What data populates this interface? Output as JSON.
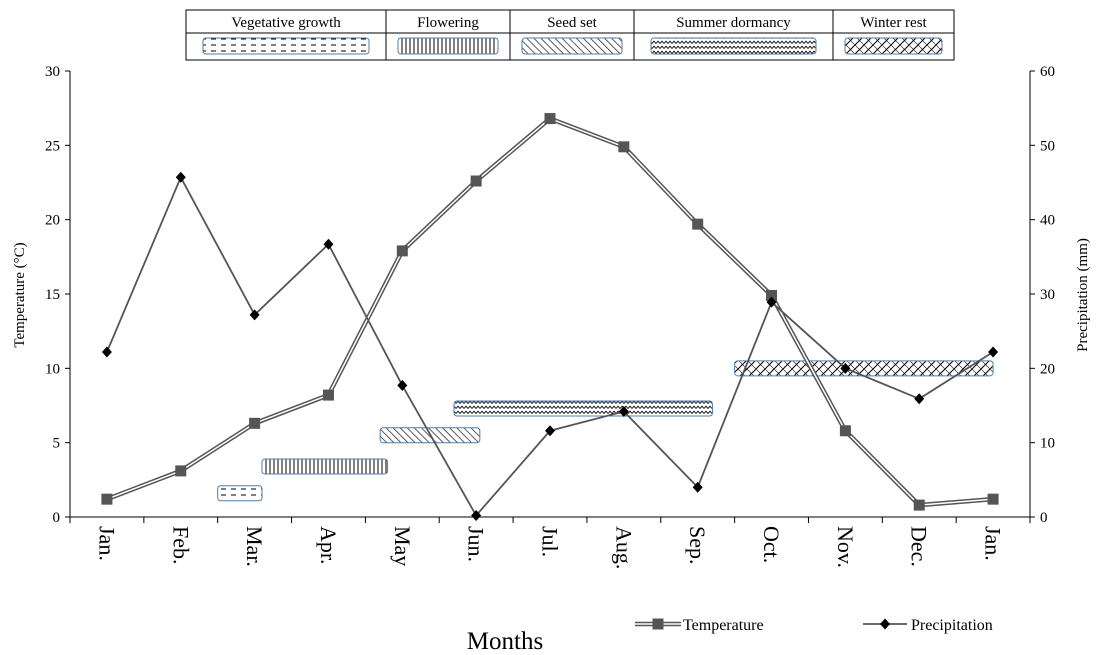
{
  "chart_data": {
    "type": "line",
    "xlabel": "Months",
    "categories": [
      "Jan.",
      "Feb.",
      "Mar.",
      "Apr.",
      "May",
      "Jun.",
      "Jul.",
      "Aug.",
      "Sep.",
      "Oct.",
      "Nov.",
      "Dec.",
      "Jan."
    ],
    "y_left": {
      "label": "Temperature (°C)",
      "ylim": [
        0,
        30
      ],
      "ticks": [
        "0",
        "5",
        "10",
        "15",
        "20",
        "25",
        "30"
      ]
    },
    "y_right": {
      "label": "Precipitation (mm)",
      "ylim": [
        0,
        60
      ],
      "ticks": [
        "0",
        "10",
        "20",
        "30",
        "40",
        "50",
        "60"
      ]
    },
    "series": [
      {
        "name": "Temperature",
        "axis": "left",
        "marker": "square",
        "color": "#555555",
        "values": [
          1.2,
          3.1,
          6.3,
          8.2,
          17.9,
          22.6,
          26.8,
          24.9,
          19.7,
          14.9,
          5.8,
          0.8,
          1.2
        ]
      },
      {
        "name": "Precipitation",
        "axis": "right",
        "marker": "diamond",
        "color": "#000000",
        "values": [
          22.2,
          45.7,
          27.2,
          36.7,
          17.7,
          0.2,
          11.6,
          14.2,
          4.0,
          28.9,
          20.0,
          15.9,
          22.2
        ]
      }
    ],
    "phases": [
      {
        "name": "Vegetative growth",
        "pattern": "dashes",
        "start": 2.0,
        "end": 2.6,
        "level": 1.6
      },
      {
        "name": "Flowering",
        "pattern": "vertical",
        "start": 2.6,
        "end": 4.3,
        "level": 3.4
      },
      {
        "name": "Seed set",
        "pattern": "diagonal",
        "start": 4.2,
        "end": 5.55,
        "level": 5.5
      },
      {
        "name": "Summer dormancy",
        "pattern": "wave",
        "start": 5.2,
        "end": 8.7,
        "level": 7.3
      },
      {
        "name": "Winter rest",
        "pattern": "crosshatch",
        "start": 9.0,
        "end": 12.5,
        "level": 10.0
      }
    ],
    "grid": false,
    "legend_position": "bottom-right",
    "phase_legend_position": "top"
  }
}
